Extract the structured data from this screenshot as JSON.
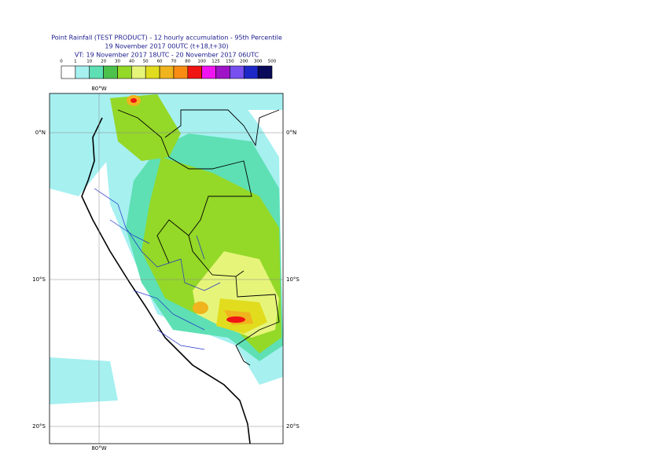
{
  "header": {
    "lines": [
      "Point Rainfall (TEST PRODUCT) - 12 hourly accumulation - 95th Percentile",
      "19 November 2017 00UTC (t+18,t+30)",
      "VT: 19 November 2017 18UTC - 20 November 2017 06UTC"
    ]
  },
  "legend": {
    "labels": [
      0,
      1,
      10,
      20,
      30,
      40,
      50,
      60,
      70,
      80,
      100,
      125,
      150,
      200,
      300,
      500
    ],
    "colors": [
      "#ffffff",
      "#a6f0f0",
      "#5ee0b4",
      "#4cc24c",
      "#94d828",
      "#e6f57a",
      "#e1dc1e",
      "#f0b41e",
      "#fa8c14",
      "#f01414",
      "#f014f0",
      "#a014c8",
      "#7850f0",
      "#1e28c8",
      "#0a0a5a"
    ]
  },
  "map": {
    "lon_label": "80°W",
    "lat_labels": [
      "0°N",
      "10°S",
      "20°S"
    ]
  }
}
